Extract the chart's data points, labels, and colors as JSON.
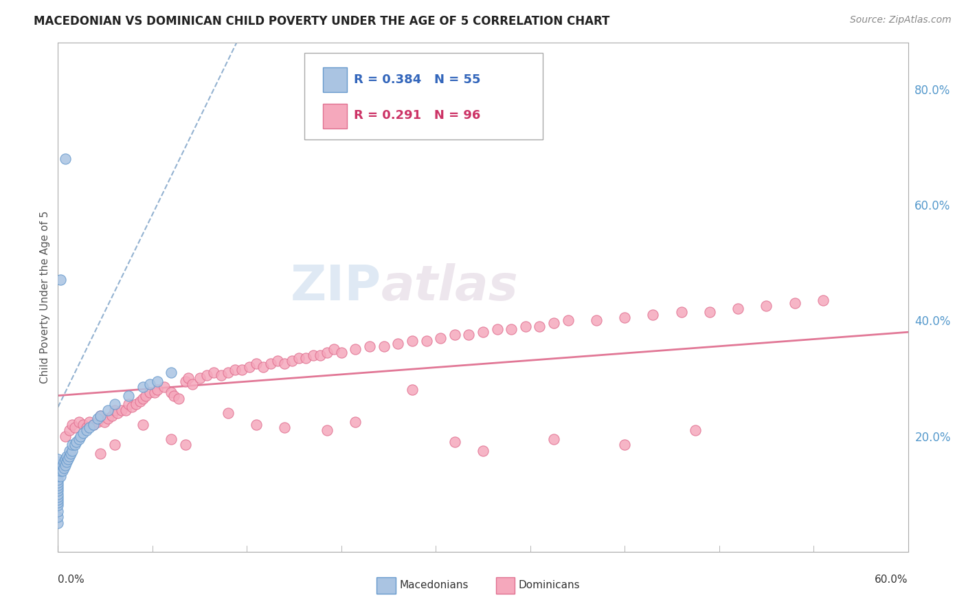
{
  "title": "MACEDONIAN VS DOMINICAN CHILD POVERTY UNDER THE AGE OF 5 CORRELATION CHART",
  "source": "Source: ZipAtlas.com",
  "ylabel": "Child Poverty Under the Age of 5",
  "right_yticks": [
    0.2,
    0.4,
    0.6,
    0.8
  ],
  "right_ytick_labels": [
    "20.0%",
    "40.0%",
    "60.0%",
    "80.0%"
  ],
  "xlim": [
    0.0,
    0.6
  ],
  "ylim": [
    0.0,
    0.88
  ],
  "mac_R": "0.384",
  "mac_N": "55",
  "dom_R": "0.291",
  "dom_N": "96",
  "mac_color": "#aac4e2",
  "dom_color": "#f5a8bc",
  "mac_edge": "#6699cc",
  "dom_edge": "#e07090",
  "watermark_text": "ZIPatlas",
  "legend_mac": "Macedonians",
  "legend_dom": "Dominicans",
  "mac_scatter_x": [
    0.0,
    0.0,
    0.0,
    0.0,
    0.0,
    0.0,
    0.0,
    0.0,
    0.0,
    0.0,
    0.0,
    0.0,
    0.0,
    0.0,
    0.0,
    0.0,
    0.0,
    0.0,
    0.0,
    0.0,
    0.002,
    0.002,
    0.003,
    0.003,
    0.004,
    0.004,
    0.005,
    0.005,
    0.006,
    0.006,
    0.007,
    0.008,
    0.008,
    0.009,
    0.01,
    0.01,
    0.012,
    0.013,
    0.015,
    0.016,
    0.018,
    0.02,
    0.022,
    0.025,
    0.028,
    0.03,
    0.035,
    0.04,
    0.05,
    0.06,
    0.065,
    0.07,
    0.08,
    0.005,
    0.002
  ],
  "mac_scatter_y": [
    0.05,
    0.06,
    0.07,
    0.08,
    0.085,
    0.09,
    0.095,
    0.1,
    0.105,
    0.11,
    0.115,
    0.12,
    0.125,
    0.13,
    0.135,
    0.14,
    0.145,
    0.15,
    0.155,
    0.16,
    0.13,
    0.14,
    0.14,
    0.15,
    0.145,
    0.155,
    0.15,
    0.16,
    0.155,
    0.165,
    0.16,
    0.165,
    0.175,
    0.17,
    0.175,
    0.185,
    0.185,
    0.19,
    0.195,
    0.2,
    0.205,
    0.21,
    0.215,
    0.22,
    0.23,
    0.235,
    0.245,
    0.255,
    0.27,
    0.285,
    0.29,
    0.295,
    0.31,
    0.68,
    0.47
  ],
  "dom_scatter_x": [
    0.005,
    0.008,
    0.01,
    0.012,
    0.015,
    0.018,
    0.02,
    0.022,
    0.025,
    0.028,
    0.03,
    0.033,
    0.035,
    0.038,
    0.04,
    0.042,
    0.045,
    0.048,
    0.05,
    0.052,
    0.055,
    0.058,
    0.06,
    0.062,
    0.065,
    0.068,
    0.07,
    0.075,
    0.08,
    0.082,
    0.085,
    0.09,
    0.092,
    0.095,
    0.1,
    0.105,
    0.11,
    0.115,
    0.12,
    0.125,
    0.13,
    0.135,
    0.14,
    0.145,
    0.15,
    0.155,
    0.16,
    0.165,
    0.17,
    0.175,
    0.18,
    0.185,
    0.19,
    0.195,
    0.2,
    0.21,
    0.22,
    0.23,
    0.24,
    0.25,
    0.26,
    0.27,
    0.28,
    0.29,
    0.3,
    0.31,
    0.32,
    0.33,
    0.34,
    0.35,
    0.36,
    0.38,
    0.4,
    0.42,
    0.44,
    0.46,
    0.48,
    0.5,
    0.52,
    0.54,
    0.03,
    0.04,
    0.06,
    0.08,
    0.09,
    0.12,
    0.14,
    0.16,
    0.19,
    0.21,
    0.25,
    0.28,
    0.3,
    0.35,
    0.4,
    0.45
  ],
  "dom_scatter_y": [
    0.2,
    0.21,
    0.22,
    0.215,
    0.225,
    0.22,
    0.215,
    0.225,
    0.22,
    0.225,
    0.235,
    0.225,
    0.23,
    0.235,
    0.245,
    0.24,
    0.245,
    0.245,
    0.255,
    0.25,
    0.255,
    0.26,
    0.265,
    0.27,
    0.275,
    0.275,
    0.28,
    0.285,
    0.275,
    0.27,
    0.265,
    0.295,
    0.3,
    0.29,
    0.3,
    0.305,
    0.31,
    0.305,
    0.31,
    0.315,
    0.315,
    0.32,
    0.325,
    0.32,
    0.325,
    0.33,
    0.325,
    0.33,
    0.335,
    0.335,
    0.34,
    0.34,
    0.345,
    0.35,
    0.345,
    0.35,
    0.355,
    0.355,
    0.36,
    0.365,
    0.365,
    0.37,
    0.375,
    0.375,
    0.38,
    0.385,
    0.385,
    0.39,
    0.39,
    0.395,
    0.4,
    0.4,
    0.405,
    0.41,
    0.415,
    0.415,
    0.42,
    0.425,
    0.43,
    0.435,
    0.17,
    0.185,
    0.22,
    0.195,
    0.185,
    0.24,
    0.22,
    0.215,
    0.21,
    0.225,
    0.28,
    0.19,
    0.175,
    0.195,
    0.185,
    0.21
  ]
}
